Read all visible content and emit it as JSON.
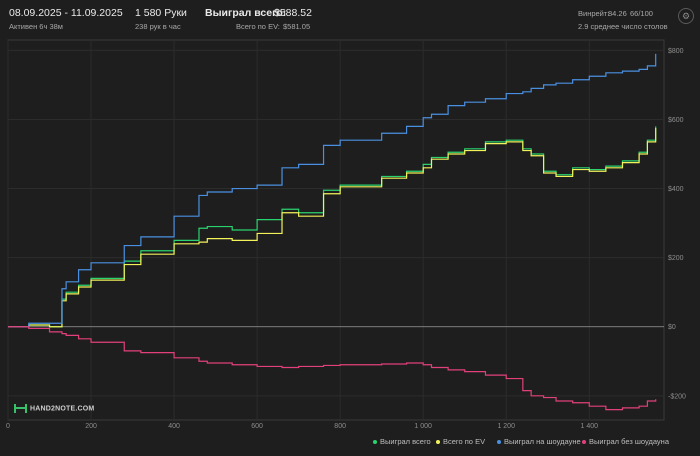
{
  "header": {
    "date_range": "08.09.2025 - 11.09.2025",
    "active": "Активен 6ч 38м",
    "hands": "1 580 Руки",
    "hands_per_hour": "238 рук в час",
    "won_label": "Выиграл всего:",
    "won_value": "$588.52",
    "ev_label": "Всего по EV:",
    "ev_value": "$581.05",
    "winrate_label": "Винрейт:",
    "winrate_value": "84.26",
    "winrate_suffix": "66/100",
    "avg_tables": "2.9 среднее число столов",
    "settings_icon": "gear-icon"
  },
  "logo_text": "HAND2NOTE.COM",
  "colors": {
    "won": "#2bd36e",
    "ev": "#f2f25a",
    "showdown": "#4a90e2",
    "non_showdown": "#e2407a",
    "background": "#1e1e1e"
  },
  "chart_data": {
    "type": "line",
    "xlim": [
      0,
      1580
    ],
    "ylim": [
      -270,
      830
    ],
    "x_ticks": [
      0,
      200,
      400,
      600,
      800,
      1000,
      1200,
      1400
    ],
    "x_tick_labels": [
      "0",
      "200",
      "400",
      "600",
      "800",
      "1 000",
      "1 200",
      "1 400"
    ],
    "y_ticks": [
      800,
      600,
      400,
      200,
      0,
      -200
    ],
    "y_tick_labels": [
      "$800",
      "$600",
      "$400",
      "$200",
      "$0",
      "-$200"
    ],
    "grid": true,
    "legend_position": "bottom-right",
    "x": [
      0,
      50,
      100,
      130,
      140,
      170,
      200,
      280,
      320,
      400,
      460,
      480,
      540,
      600,
      660,
      700,
      760,
      800,
      900,
      960,
      1000,
      1020,
      1060,
      1100,
      1150,
      1200,
      1240,
      1260,
      1290,
      1320,
      1360,
      1400,
      1440,
      1480,
      1520,
      1540,
      1560
    ],
    "series": [
      {
        "name": "Выиграл всего",
        "color_key": "won",
        "values": [
          0,
          5,
          0,
          80,
          100,
          120,
          140,
          190,
          220,
          250,
          285,
          290,
          280,
          310,
          340,
          330,
          395,
          410,
          435,
          450,
          470,
          490,
          505,
          515,
          535,
          540,
          515,
          500,
          450,
          440,
          460,
          455,
          465,
          480,
          505,
          540,
          580
        ]
      },
      {
        "name": "Всего по EV",
        "color_key": "ev",
        "values": [
          0,
          5,
          0,
          75,
          95,
          115,
          135,
          180,
          210,
          240,
          245,
          255,
          250,
          270,
          330,
          320,
          385,
          405,
          430,
          445,
          460,
          485,
          500,
          510,
          530,
          535,
          510,
          495,
          445,
          435,
          455,
          450,
          460,
          475,
          500,
          535,
          575
        ]
      },
      {
        "name": "Выиграл на шоудауне",
        "color_key": "showdown",
        "values": [
          0,
          10,
          10,
          110,
          130,
          165,
          185,
          235,
          260,
          320,
          380,
          390,
          400,
          410,
          460,
          470,
          525,
          540,
          560,
          580,
          605,
          615,
          640,
          650,
          660,
          675,
          680,
          690,
          700,
          705,
          715,
          725,
          735,
          740,
          745,
          755,
          790
        ]
      },
      {
        "name": "Выиграл без шоудауна",
        "color_key": "non_showdown",
        "values": [
          0,
          -5,
          -15,
          -20,
          -25,
          -35,
          -45,
          -70,
          -75,
          -90,
          -100,
          -105,
          -110,
          -115,
          -118,
          -115,
          -112,
          -110,
          -108,
          -105,
          -110,
          -118,
          -125,
          -130,
          -140,
          -150,
          -185,
          -200,
          -205,
          -215,
          -220,
          -230,
          -240,
          -235,
          -230,
          -215,
          -210
        ]
      }
    ]
  }
}
